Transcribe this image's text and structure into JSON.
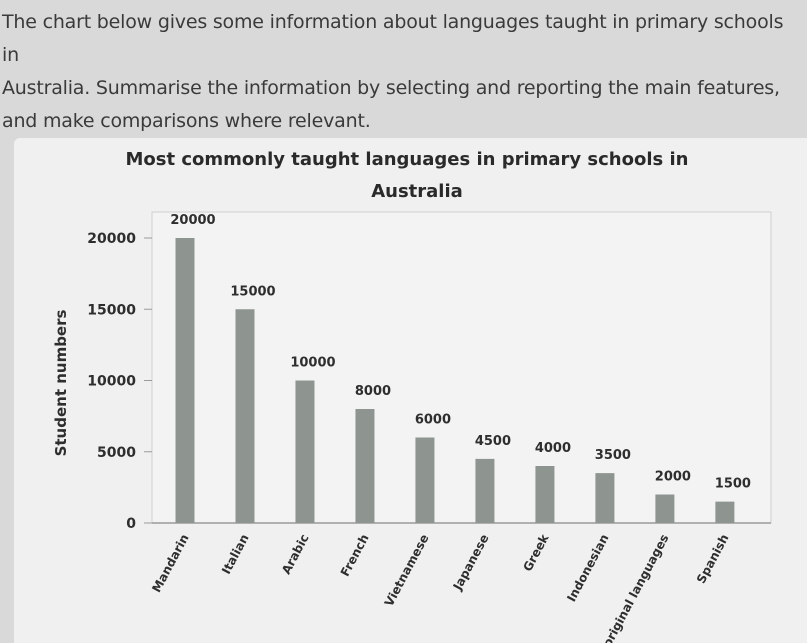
{
  "prompt": {
    "lines": [
      "The chart below gives some information about languages taught in primary schools in",
      "Australia. Summarise the information by selecting and reporting the main features,",
      "and make comparisons where relevant."
    ]
  },
  "chart_data": {
    "type": "bar",
    "title": "Most commonly taught languages in primary schools in Australia",
    "title_lines": [
      "Most commonly taught languages in primary schools in",
      "Australia"
    ],
    "xlabel": "",
    "ylabel": "Student numbers",
    "ylim": [
      0,
      20000
    ],
    "yticks": [
      0,
      5000,
      10000,
      15000,
      20000
    ],
    "grid": false,
    "legend": "none",
    "categories": [
      "Mandarin",
      "Italian",
      "Arabic",
      "French",
      "Vietnamese",
      "Japanese",
      "Greek",
      "Indonesian",
      "Aboriginal languages",
      "Spanish"
    ],
    "values": [
      20000,
      15000,
      10000,
      8000,
      6000,
      4500,
      4000,
      3500,
      2000,
      1500
    ],
    "bar_color": "#8e9490"
  }
}
